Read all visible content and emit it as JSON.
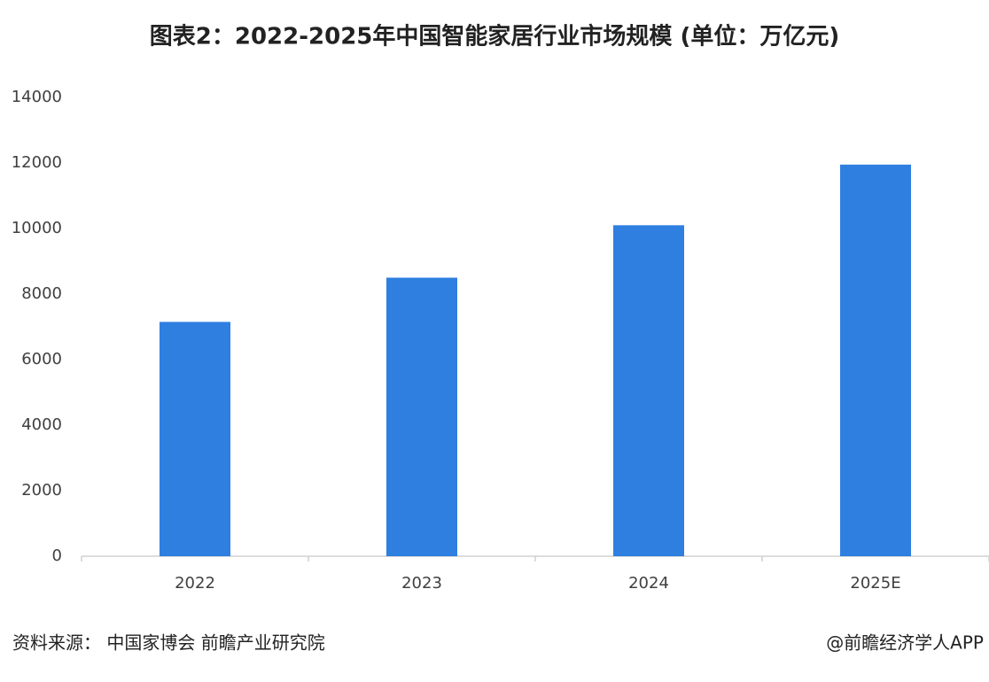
{
  "chart_data": {
    "type": "bar",
    "title": "图表2：2022-2025年中国智能家居行业市场规模 (单位：万亿元)",
    "categories": [
      "2022",
      "2023",
      "2024",
      "2025E"
    ],
    "values": [
      7150,
      8500,
      10100,
      11950
    ],
    "color": "#2e7fe0",
    "ylim": [
      0,
      14000
    ],
    "yticks": [
      0,
      2000,
      4000,
      6000,
      8000,
      10000,
      12000,
      14000
    ],
    "grid": false
  },
  "footer": {
    "source": "资料来源： 中国家博会 前瞻产业研究院",
    "brand": "@前瞻经济学人APP"
  }
}
